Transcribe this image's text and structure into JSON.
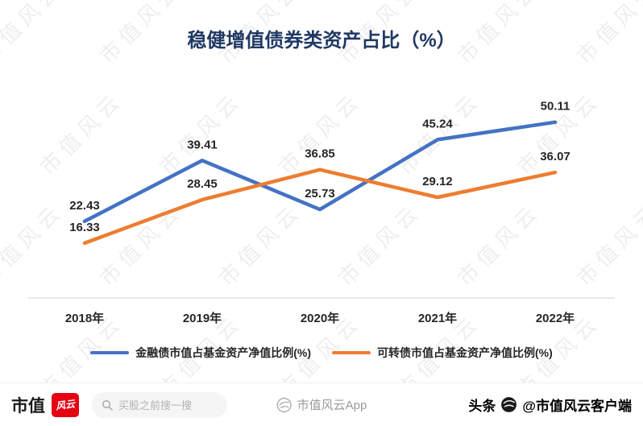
{
  "chart_data": {
    "type": "line",
    "title": "稳健增值债券类资产占比（%）",
    "categories": [
      "2018年",
      "2019年",
      "2020年",
      "2021年",
      "2022年"
    ],
    "series": [
      {
        "name": "金融债市值占基金资产净值比例(%)",
        "color": "#4472c4",
        "values": [
          22.43,
          39.41,
          25.73,
          45.24,
          50.11
        ]
      },
      {
        "name": "可转债市值占基金资产净值比例(%)",
        "color": "#ed7d31",
        "values": [
          16.33,
          28.45,
          36.85,
          29.12,
          36.07
        ]
      }
    ],
    "ylim": [
      10,
      55
    ],
    "grid": false,
    "legend_position": "bottom",
    "data_labels": true
  },
  "watermark": {
    "text": "市值风云"
  },
  "footer": {
    "brand_left": "市值",
    "brand_logo_text": "风云",
    "search_placeholder": "买股之前搜一搜",
    "app_label": "市值风云App",
    "toutiao_prefix": "头条",
    "toutiao_handle": "@市值风云客户端"
  }
}
